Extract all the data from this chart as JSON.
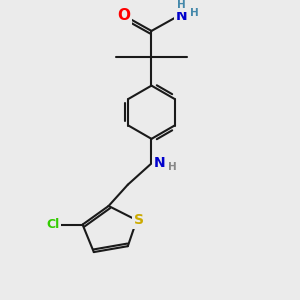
{
  "background_color": "#ebebeb",
  "bond_color": "#1a1a1a",
  "atom_colors": {
    "O": "#ff0000",
    "N": "#0000cc",
    "Cl": "#33cc00",
    "S": "#ccaa00",
    "H_amide": "#4488aa",
    "H_amine": "#888888"
  },
  "lw": 1.5,
  "xlim": [
    0,
    10
  ],
  "ylim": [
    0,
    10
  ]
}
